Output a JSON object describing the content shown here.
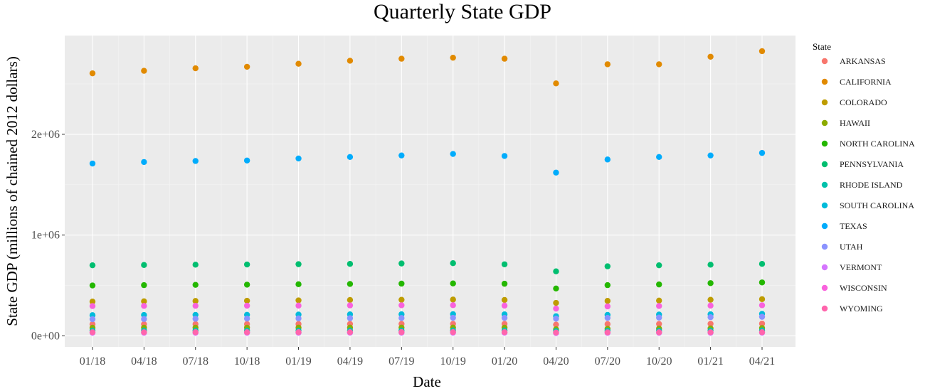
{
  "chart_data": {
    "type": "scatter",
    "title": "Quarterly State GDP",
    "xlabel": "Date",
    "ylabel": "State GDP (millions of chained 2012 dollars)",
    "legend_title": "State",
    "legend_position": "right",
    "grid": true,
    "ylim": [
      -110000,
      2980000
    ],
    "y_ticks": [
      {
        "value": 0,
        "label": "0e+00"
      },
      {
        "value": 1000000,
        "label": "1e+06"
      },
      {
        "value": 2000000,
        "label": "2e+06"
      }
    ],
    "categories": [
      "01/18",
      "04/18",
      "07/18",
      "10/18",
      "01/19",
      "04/19",
      "07/19",
      "10/19",
      "01/20",
      "04/20",
      "07/20",
      "10/20",
      "01/21",
      "04/21"
    ],
    "series": [
      {
        "name": "ARKANSAS",
        "color": "#F8766D",
        "values": [
          115000,
          116000,
          116500,
          117000,
          117500,
          118000,
          118500,
          119000,
          118500,
          111000,
          117000,
          118000,
          119500,
          121000
        ]
      },
      {
        "name": "CALIFORNIA",
        "color": "#E18A00",
        "values": [
          2605000,
          2630000,
          2655000,
          2670000,
          2700000,
          2730000,
          2750000,
          2760000,
          2750000,
          2505000,
          2695000,
          2695000,
          2770000,
          2825000
        ]
      },
      {
        "name": "COLORADO",
        "color": "#BE9C00",
        "values": [
          340000,
          343000,
          346000,
          348000,
          352000,
          356000,
          358000,
          360000,
          356000,
          327000,
          347000,
          350000,
          358000,
          364000
        ]
      },
      {
        "name": "HAWAII",
        "color": "#8CAB00",
        "values": [
          80000,
          80500,
          81000,
          81000,
          81500,
          81500,
          82000,
          82000,
          81000,
          65000,
          70000,
          72000,
          74000,
          77000
        ]
      },
      {
        "name": "NORTH CAROLINA",
        "color": "#24B700",
        "values": [
          500000,
          503000,
          506000,
          508000,
          512000,
          515000,
          518000,
          520000,
          517000,
          470000,
          503000,
          510000,
          523000,
          530000
        ]
      },
      {
        "name": "PENNSYLVANIA",
        "color": "#00BE70",
        "values": [
          700000,
          703000,
          706000,
          708000,
          711000,
          714000,
          718000,
          721000,
          710000,
          640000,
          690000,
          700000,
          706000,
          714000
        ]
      },
      {
        "name": "RHODE ISLAND",
        "color": "#00C1AB",
        "values": [
          52000,
          52300,
          52500,
          52700,
          53000,
          53200,
          53500,
          53700,
          53300,
          48000,
          51500,
          52000,
          53000,
          54000
        ]
      },
      {
        "name": "SOUTH CAROLINA",
        "color": "#00BBDA",
        "values": [
          205000,
          207000,
          208000,
          209000,
          211000,
          213000,
          214000,
          215000,
          213000,
          195000,
          208000,
          211000,
          214000,
          218000
        ]
      },
      {
        "name": "TEXAS",
        "color": "#00ACFC",
        "values": [
          1710000,
          1725000,
          1735000,
          1740000,
          1760000,
          1775000,
          1790000,
          1805000,
          1785000,
          1620000,
          1750000,
          1775000,
          1790000,
          1815000
        ]
      },
      {
        "name": "UTAH",
        "color": "#8B93FF",
        "values": [
          165000,
          167000,
          169000,
          171000,
          173000,
          175000,
          177000,
          179000,
          178000,
          170000,
          178000,
          181000,
          185000,
          189000
        ]
      },
      {
        "name": "VERMONT",
        "color": "#D575FE",
        "values": [
          30000,
          30100,
          30200,
          30300,
          30400,
          30500,
          30600,
          30700,
          30500,
          27000,
          29500,
          29800,
          30300,
          30800
        ]
      },
      {
        "name": "WISCONSIN",
        "color": "#F962DD",
        "values": [
          295000,
          297000,
          298000,
          299000,
          300000,
          302000,
          303000,
          304000,
          300000,
          270000,
          292000,
          296000,
          300000,
          303000
        ]
      },
      {
        "name": "WYOMING",
        "color": "#FF65AC",
        "values": [
          36000,
          36200,
          36400,
          36600,
          36800,
          37000,
          37200,
          37400,
          36800,
          33500,
          35000,
          35500,
          36000,
          36500
        ]
      }
    ]
  }
}
